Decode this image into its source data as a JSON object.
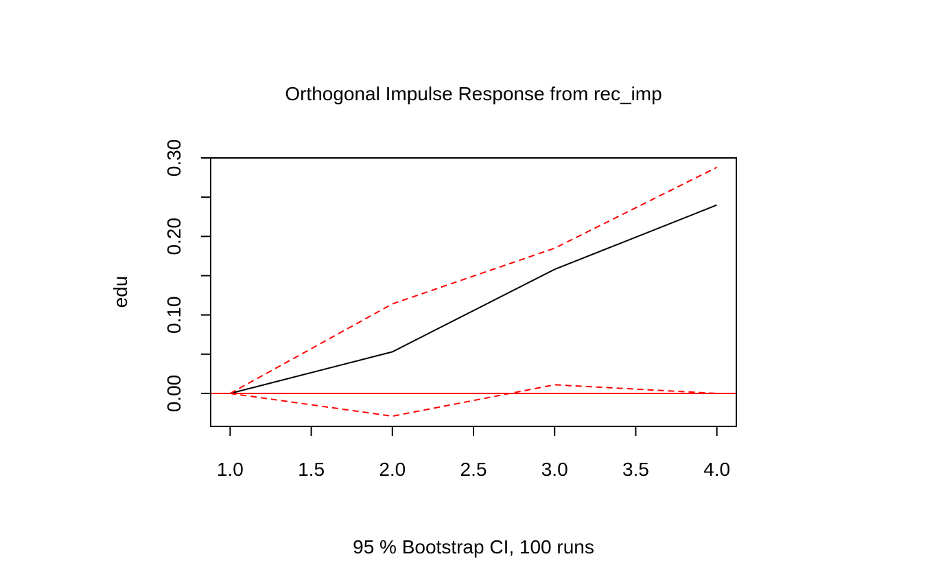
{
  "chart_data": {
    "type": "line",
    "title": "Orthogonal Impulse Response from rec_imp",
    "xlabel": "95 % Bootstrap CI,  100 runs",
    "ylabel": "edu",
    "x": [
      1.0,
      2.0,
      3.0,
      4.0
    ],
    "series": [
      {
        "values": [
          0.0,
          0.053,
          0.158,
          0.24
        ],
        "color": "#000000",
        "style": "solid"
      },
      {
        "values": [
          0.0,
          0.114,
          0.185,
          0.288
        ],
        "color": "#ff0000",
        "style": "dashed"
      },
      {
        "values": [
          0.0,
          -0.029,
          0.011,
          0.0
        ],
        "color": "#ff0000",
        "style": "dashed"
      }
    ],
    "zero_line": {
      "value": 0.0,
      "color": "#ff0000"
    },
    "xlim": [
      0.88,
      4.12
    ],
    "ylim": [
      -0.042,
      0.3
    ],
    "xticks": [
      1.0,
      1.5,
      2.0,
      2.5,
      3.0,
      3.5,
      4.0
    ],
    "xtick_labels": [
      "1.0",
      "1.5",
      "2.0",
      "2.5",
      "3.0",
      "3.5",
      "4.0"
    ],
    "yticks": [
      0.0,
      0.05,
      0.1,
      0.15,
      0.2,
      0.25,
      0.3
    ],
    "ytick_labels": [
      "0.00",
      "",
      "0.10",
      "",
      "0.20",
      "",
      "0.30"
    ],
    "grid": false,
    "legend": "none"
  }
}
